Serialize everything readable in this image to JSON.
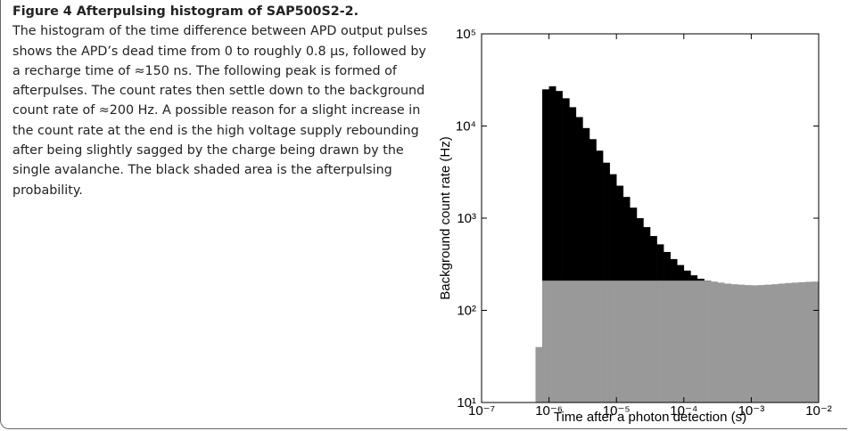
{
  "caption": {
    "title": "Figure 4  Afterpulsing histogram of SAP500S2-2.",
    "text": "The histogram of the time difference between APD output pulses shows the APD’s dead time from 0 to roughly 0.8 μs, followed by a recharge time of ≈150 ns. The following peak is formed of afterpulses. The count rates then settle down to the background count rate of ≈200 Hz. A possible reason for a slight increase in the count rate at the end is the high voltage supply rebounding after being slightly sagged by the charge being drawn by the single avalanche. The black shaded area is the afterpulsing probability."
  },
  "chart_data": {
    "type": "histogram",
    "x_label": "Time after a photon detection (s)",
    "y_label": "Background count rate (Hz)",
    "xlog": true,
    "ylog": true,
    "grid": false,
    "xlim": [
      1e-07,
      0.01
    ],
    "ylim": [
      10,
      100000
    ],
    "xticks": [
      {
        "value": 1e-07,
        "label": "10⁻⁷"
      },
      {
        "value": 1e-06,
        "label": "10⁻⁶"
      },
      {
        "value": 1e-05,
        "label": "10⁻⁵"
      },
      {
        "value": 0.0001,
        "label": "10⁻⁴"
      },
      {
        "value": 0.001,
        "label": "10⁻³"
      },
      {
        "value": 0.01,
        "label": "10⁻²"
      }
    ],
    "yticks": [
      {
        "value": 10,
        "label": "10¹"
      },
      {
        "value": 100,
        "label": "10²"
      },
      {
        "value": 1000,
        "label": "10³"
      },
      {
        "value": 10000,
        "label": "10⁴"
      },
      {
        "value": 100000,
        "label": "10⁵"
      }
    ],
    "bins": [
      6.31e-07,
      7.94e-07,
      1e-06,
      1.26e-06,
      1.58e-06,
      2e-06,
      2.51e-06,
      3.16e-06,
      3.98e-06,
      5.01e-06,
      6.31e-06,
      7.94e-06,
      1e-05,
      1.26e-05,
      1.58e-05,
      2e-05,
      2.51e-05,
      3.16e-05,
      3.98e-05,
      5.01e-05,
      6.31e-05,
      7.94e-05,
      0.0001,
      0.000126,
      0.000158,
      0.0002,
      0.000251,
      0.000316,
      0.000398,
      0.000501,
      0.000631,
      0.000794,
      0.001,
      0.00126,
      0.00158,
      0.002,
      0.00251,
      0.00316,
      0.00398,
      0.00501,
      0.00631,
      0.00794,
      0.01
    ],
    "series": [
      {
        "color": "#000000",
        "values": [
          null,
          25000,
          27000,
          24000,
          20000,
          16000,
          12500,
          9500,
          7200,
          5400,
          4000,
          3000,
          2250,
          1700,
          1300,
          1000,
          800,
          640,
          520,
          430,
          360,
          310,
          270,
          240,
          220,
          210,
          null,
          null,
          null,
          null,
          null,
          null,
          null,
          null,
          null,
          null,
          null,
          null,
          null,
          null,
          null,
          null
        ]
      },
      {
        "color": "#999999",
        "values": [
          40,
          210,
          210,
          210,
          210,
          210,
          210,
          210,
          210,
          210,
          210,
          210,
          210,
          210,
          210,
          210,
          210,
          210,
          210,
          210,
          210,
          210,
          210,
          210,
          210,
          210,
          205,
          200,
          195,
          192,
          190,
          188,
          187,
          188,
          190,
          192,
          195,
          198,
          200,
          202,
          204,
          205
        ]
      }
    ]
  }
}
